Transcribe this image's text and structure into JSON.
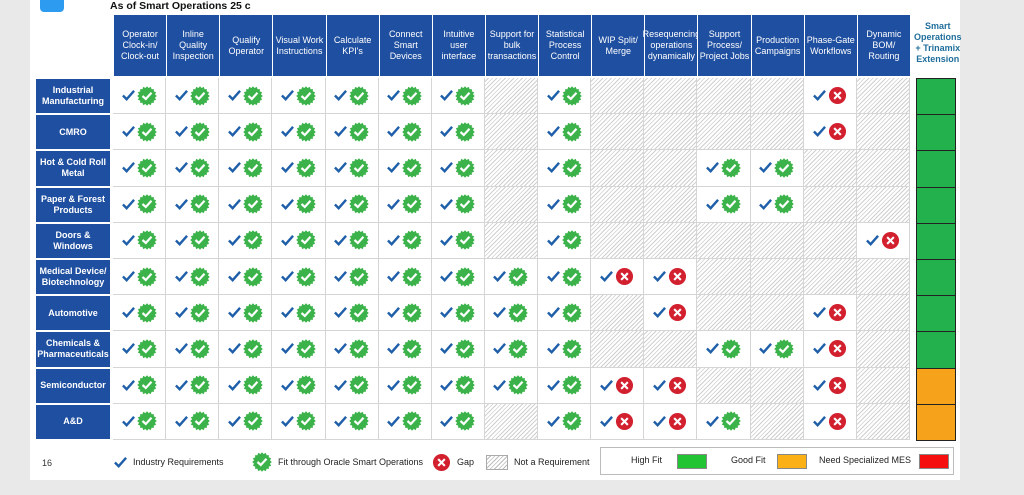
{
  "header": {
    "subtitle": "As of Smart Operations 25 c",
    "page_number": "16"
  },
  "table": {
    "columns": [
      "Operator Clock-in/ Clock-out",
      "Inline Quality Inspection",
      "Qualify Operator",
      "Visual Work Instructions",
      "Calculate KPI's",
      "Connect Smart Devices",
      "Intuitive user interface",
      "Support for bulk transactions",
      "Statistical Process Control",
      "WIP Split/ Merge",
      "Resequencing operations dynamically",
      "Support Process/ Project Jobs",
      "Production Campaigns",
      "Phase-Gate Workflows",
      "Dynamic BOM/ Routing"
    ],
    "extension_header": "Smart Operations + Trinamix Extension",
    "rows": [
      {
        "label": "Industrial Manufacturing",
        "cells": [
          "fit",
          "fit",
          "fit",
          "fit",
          "fit",
          "fit",
          "fit",
          "na",
          "fit",
          "na",
          "na",
          "na",
          "na",
          "gap",
          "na"
        ],
        "extension": "#22b14c"
      },
      {
        "label": "CMRO",
        "cells": [
          "fit",
          "fit",
          "fit",
          "fit",
          "fit",
          "fit",
          "fit",
          "na",
          "fit",
          "na",
          "na",
          "na",
          "na",
          "gap",
          "na"
        ],
        "extension": "#22b14c"
      },
      {
        "label": "Hot & Cold Roll Metal",
        "cells": [
          "fit",
          "fit",
          "fit",
          "fit",
          "fit",
          "fit",
          "fit",
          "na",
          "fit",
          "na",
          "na",
          "fit",
          "fit",
          "na",
          "na"
        ],
        "extension": "#22b14c"
      },
      {
        "label": "Paper & Forest Products",
        "cells": [
          "fit",
          "fit",
          "fit",
          "fit",
          "fit",
          "fit",
          "fit",
          "na",
          "fit",
          "na",
          "na",
          "fit",
          "fit",
          "na",
          "na"
        ],
        "extension": "#22b14c"
      },
      {
        "label": "Doors & Windows",
        "cells": [
          "fit",
          "fit",
          "fit",
          "fit",
          "fit",
          "fit",
          "fit",
          "na",
          "fit",
          "na",
          "na",
          "na",
          "na",
          "na",
          "gap"
        ],
        "extension": "#22b14c"
      },
      {
        "label": "Medical Device/ Biotechnology",
        "cells": [
          "fit",
          "fit",
          "fit",
          "fit",
          "fit",
          "fit",
          "fit",
          "fit",
          "fit",
          "gap",
          "gap",
          "na",
          "na",
          "na",
          "na"
        ],
        "extension": "#22b14c"
      },
      {
        "label": "Automotive",
        "cells": [
          "fit",
          "fit",
          "fit",
          "fit",
          "fit",
          "fit",
          "fit",
          "fit",
          "fit",
          "na",
          "gap",
          "na",
          "na",
          "gap",
          "na"
        ],
        "extension": "#22b14c"
      },
      {
        "label": "Chemicals & Pharmaceuticals",
        "cells": [
          "fit",
          "fit",
          "fit",
          "fit",
          "fit",
          "fit",
          "fit",
          "fit",
          "fit",
          "na",
          "na",
          "fit",
          "fit",
          "gap",
          "na"
        ],
        "extension": "#22b14c"
      },
      {
        "label": "Semiconductor",
        "cells": [
          "fit",
          "fit",
          "fit",
          "fit",
          "fit",
          "fit",
          "fit",
          "fit",
          "fit",
          "gap",
          "gap",
          "na",
          "na",
          "gap",
          "na"
        ],
        "extension": "#f7a21b"
      },
      {
        "label": "A&D",
        "cells": [
          "fit",
          "fit",
          "fit",
          "fit",
          "fit",
          "fit",
          "fit",
          "na",
          "fit",
          "gap",
          "gap",
          "fit",
          "na",
          "gap",
          "na"
        ],
        "extension": "#f7a21b"
      }
    ]
  },
  "legend": {
    "items": [
      {
        "label": "Industry Requirements",
        "icon": "check"
      },
      {
        "label": "Fit through Oracle Smart Operations",
        "icon": "fit"
      },
      {
        "label": "Gap",
        "icon": "gap"
      },
      {
        "label": "Not a Requirement",
        "icon": "na"
      }
    ],
    "scale": [
      {
        "label": "High Fit",
        "color": "#22c433"
      },
      {
        "label": "Good Fit",
        "color": "#fbb116"
      },
      {
        "label": "Need Specialized MES",
        "color": "#f50f0f"
      }
    ]
  }
}
